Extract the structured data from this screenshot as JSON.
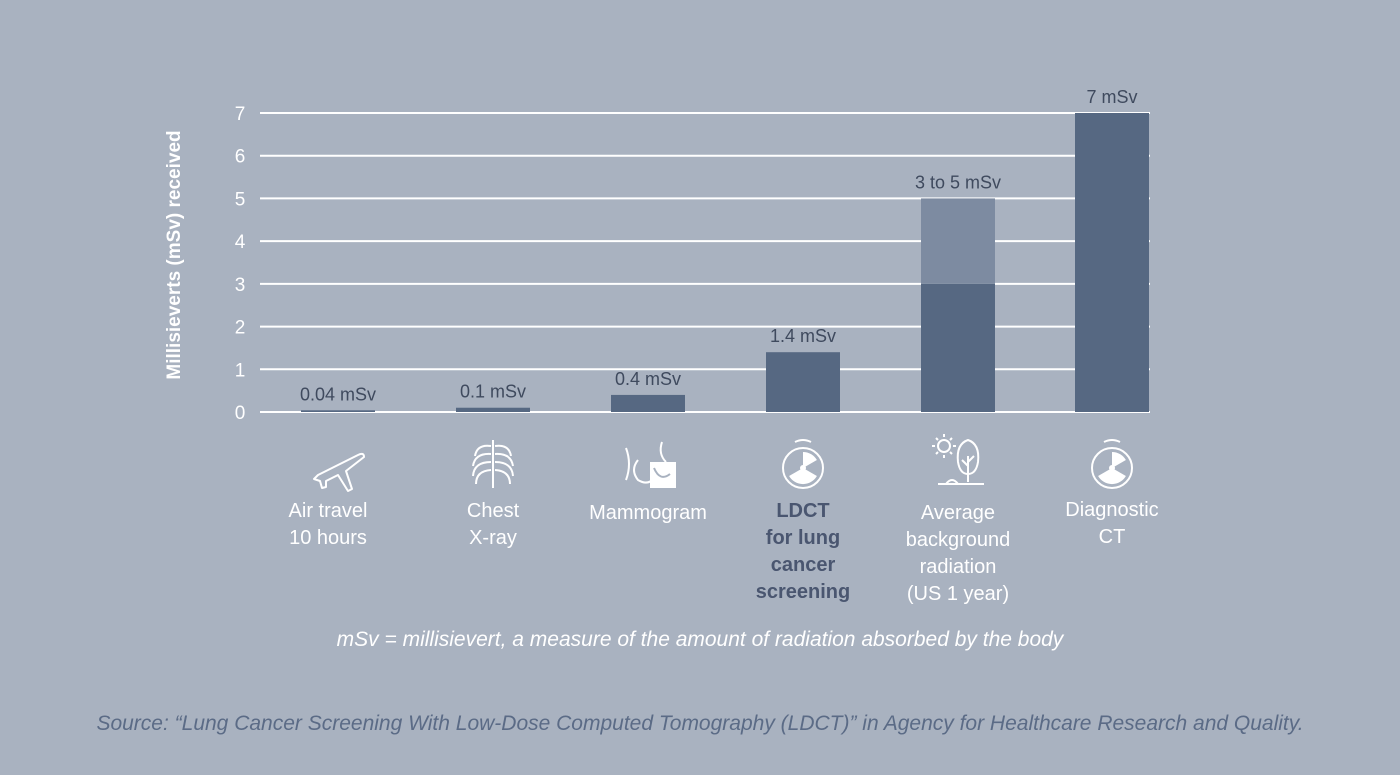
{
  "chart_data": {
    "type": "bar",
    "ylabel": "Millisieverts (mSv) received",
    "ylim": [
      0,
      7
    ],
    "yticks": [
      "0",
      "1",
      "2",
      "3",
      "4",
      "5",
      "6",
      "7"
    ],
    "grid": true,
    "categories": [
      "Air travel 10 hours",
      "Chest X-ray",
      "Mammogram",
      "LDCT for lung cancer screening",
      "Average background radiation (US 1 year)",
      "Diagnostic CT"
    ],
    "bars": [
      {
        "low": 0,
        "high": 0.04,
        "range_top": null,
        "label": "0.04 mSv"
      },
      {
        "low": 0,
        "high": 0.1,
        "range_top": null,
        "label": "0.1 mSv"
      },
      {
        "low": 0,
        "high": 0.4,
        "range_top": null,
        "label": "0.4 mSv"
      },
      {
        "low": 0,
        "high": 1.4,
        "range_top": null,
        "label": "1.4 mSv"
      },
      {
        "low": 0,
        "high": 3,
        "range_top": 5,
        "label": "3 to 5 mSv"
      },
      {
        "low": 0,
        "high": 7,
        "range_top": null,
        "label": "7 mSv"
      }
    ],
    "colors": {
      "bar": "#566882",
      "range": "#7d8ba1",
      "grid": "#ffffff"
    }
  },
  "category_labels": [
    {
      "lines": [
        "Air travel",
        "10 hours"
      ],
      "icon": "airplane-icon",
      "bold": false
    },
    {
      "lines": [
        "Chest",
        "X-ray"
      ],
      "icon": "ribcage-icon",
      "bold": false
    },
    {
      "lines": [
        "Mammogram"
      ],
      "icon": "mammogram-icon",
      "bold": false
    },
    {
      "lines": [
        "LDCT",
        "for lung",
        "cancer",
        "screening"
      ],
      "icon": "radiation-scan-icon",
      "bold": true
    },
    {
      "lines": [
        "Average",
        "background",
        "radiation",
        "(US 1 year)"
      ],
      "icon": "sun-tree-icon",
      "bold": false
    },
    {
      "lines": [
        "Diagnostic",
        "CT"
      ],
      "icon": "radiation-scan-icon",
      "bold": false
    }
  ],
  "footnote": "mSv = millisievert, a measure of the amount of radiation absorbed by the body",
  "source": "Source: “Lung Cancer Screening With Low-Dose Computed Tomography (LDCT)” in Agency for Healthcare Research and Quality."
}
